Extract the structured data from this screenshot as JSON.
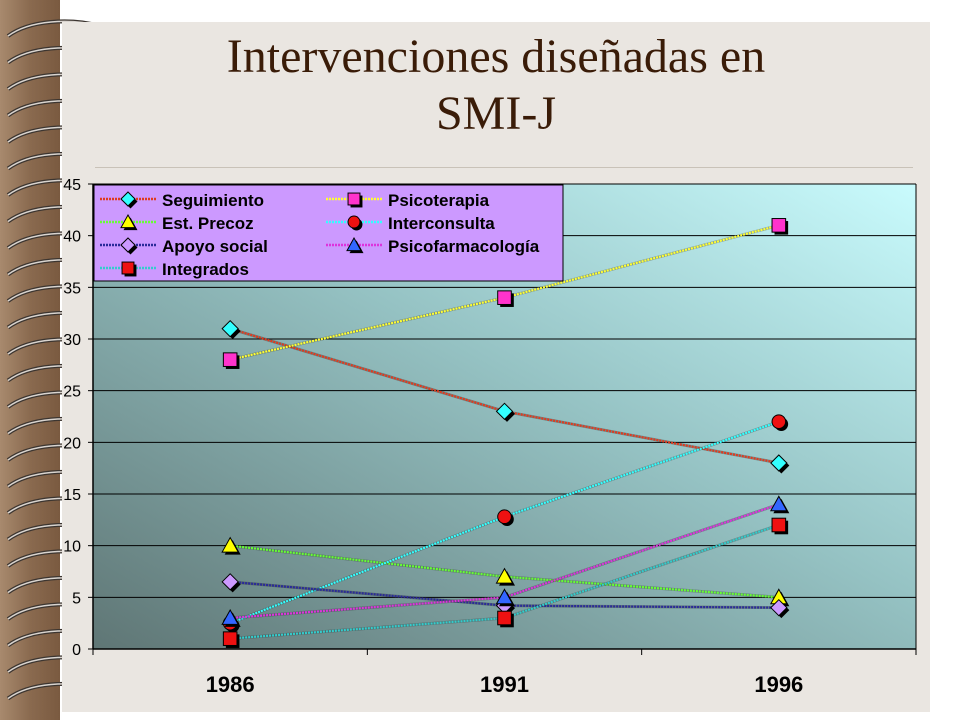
{
  "slide": {
    "title_line1": "Intervenciones diseñadas en",
    "title_line2": "SMI-J"
  },
  "colors": {
    "title": "#3a1c08",
    "slide_bg": "#eae6e1",
    "plot_gradient_dark": "#5f7675",
    "plot_gradient_light": "#c9fbfd",
    "legend_bg": "#cc99ff",
    "binding_wood": "#8a6a4f"
  },
  "chart_data": {
    "type": "line",
    "title": "",
    "xlabel": "",
    "ylabel": "",
    "categories": [
      "1986",
      "1991",
      "1996"
    ],
    "ylim": [
      0,
      45
    ],
    "yticks": [
      "0",
      "5",
      "10",
      "15",
      "20",
      "25",
      "30",
      "35",
      "40",
      "45"
    ],
    "grid": "horizontal",
    "legend_position": "top-left",
    "series": [
      {
        "name": "Seguimiento",
        "values": [
          31,
          23,
          18
        ],
        "line_color": "#e03a1e",
        "marker": "diamond",
        "marker_color": "#33ffff"
      },
      {
        "name": "Psicoterapia",
        "values": [
          28,
          34,
          41
        ],
        "line_color": "#ffff33",
        "marker": "square",
        "marker_color": "#ff33cc"
      },
      {
        "name": "Est. Precoz",
        "values": [
          10,
          7,
          5
        ],
        "line_color": "#66ff33",
        "marker": "triangle",
        "marker_color": "#ffff00"
      },
      {
        "name": "Interconsulta",
        "values": [
          2.5,
          12.8,
          22
        ],
        "line_color": "#33ffff",
        "marker": "circle",
        "marker_color": "#ee1111"
      },
      {
        "name": "Apoyo social",
        "values": [
          6.5,
          4.2,
          4
        ],
        "line_color": "#2a2a99",
        "marker": "diamond",
        "marker_color": "#cc99ff"
      },
      {
        "name": "Psicofarmacología",
        "values": [
          3,
          5,
          14
        ],
        "line_color": "#dd33dd",
        "marker": "triangle",
        "marker_color": "#3366ff"
      },
      {
        "name": "Integrados",
        "values": [
          1,
          3,
          12
        ],
        "line_color": "#33cccc",
        "marker": "square",
        "marker_color": "#ee1111"
      }
    ]
  }
}
